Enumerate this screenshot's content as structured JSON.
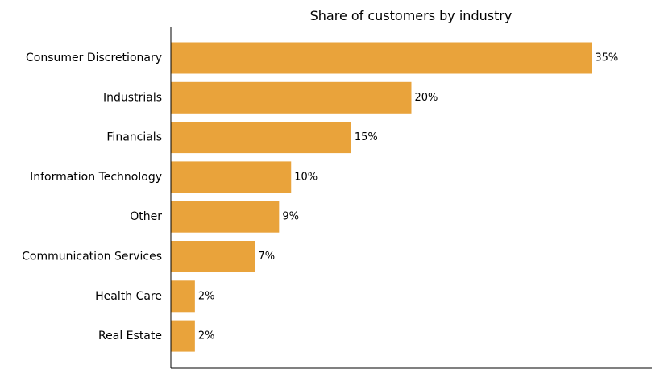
{
  "chart_data": {
    "type": "bar",
    "orientation": "horizontal",
    "title": "Share of customers by industry",
    "xlabel": "",
    "ylabel": "",
    "categories": [
      "Consumer Discretionary",
      "Industrials",
      "Financials",
      "Information Technology",
      "Other",
      "Communication Services",
      "Health Care",
      "Real Estate"
    ],
    "values": [
      35,
      20,
      15,
      10,
      9,
      7,
      2,
      2
    ],
    "value_labels": [
      "35%",
      "20%",
      "15%",
      "10%",
      "9%",
      "7%",
      "2%",
      "2%"
    ],
    "unit": "%",
    "xlim": [
      0,
      40
    ],
    "bar_color": "#E9A33B",
    "grid": false,
    "legend": "none",
    "x_ticks_visible": false
  }
}
